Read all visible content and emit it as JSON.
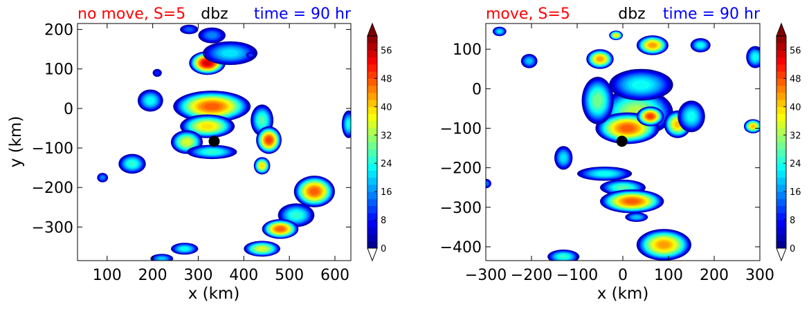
{
  "chart_data": [
    {
      "type": "heatmap",
      "title_left": "no move, S=5",
      "title_center": "dbz",
      "title_right": "time = 90 hr",
      "title_colors": {
        "left": "#ff0000",
        "center": "#000000",
        "right": "#0000ff"
      },
      "xlabel": "x (km)",
      "ylabel": "y (km)",
      "xlim": [
        35,
        635
      ],
      "ylim": [
        -385,
        215
      ],
      "xticks": [
        100,
        200,
        300,
        400,
        500,
        600
      ],
      "yticks": [
        200,
        100,
        0,
        -100,
        -200,
        -300
      ],
      "center_marker": {
        "x": 335,
        "y": -83
      },
      "blobs": [
        {
          "x": 330,
          "y": 5,
          "rx": 85,
          "ry": 40,
          "peak": 46
        },
        {
          "x": 320,
          "y": -45,
          "rx": 60,
          "ry": 30,
          "peak": 38
        },
        {
          "x": 275,
          "y": -85,
          "rx": 35,
          "ry": 30,
          "peak": 34
        },
        {
          "x": 330,
          "y": -110,
          "rx": 55,
          "ry": 18,
          "peak": 24
        },
        {
          "x": 440,
          "y": -30,
          "rx": 25,
          "ry": 40,
          "peak": 26
        },
        {
          "x": 455,
          "y": -80,
          "rx": 28,
          "ry": 35,
          "peak": 48
        },
        {
          "x": 440,
          "y": -145,
          "rx": 18,
          "ry": 22,
          "peak": 38
        },
        {
          "x": 320,
          "y": 115,
          "rx": 40,
          "ry": 30,
          "peak": 54
        },
        {
          "x": 370,
          "y": 140,
          "rx": 60,
          "ry": 30,
          "peak": 20
        },
        {
          "x": 330,
          "y": 185,
          "rx": 30,
          "ry": 20,
          "peak": 14
        },
        {
          "x": 415,
          "y": 135,
          "rx": 10,
          "ry": 8,
          "peak": 10
        },
        {
          "x": 195,
          "y": 20,
          "rx": 28,
          "ry": 28,
          "peak": 22
        },
        {
          "x": 155,
          "y": -140,
          "rx": 30,
          "ry": 25,
          "peak": 24
        },
        {
          "x": 90,
          "y": -175,
          "rx": 12,
          "ry": 12,
          "peak": 14
        },
        {
          "x": 555,
          "y": -210,
          "rx": 45,
          "ry": 40,
          "peak": 46
        },
        {
          "x": 515,
          "y": -270,
          "rx": 40,
          "ry": 30,
          "peak": 24
        },
        {
          "x": 480,
          "y": -305,
          "rx": 40,
          "ry": 25,
          "peak": 46
        },
        {
          "x": 440,
          "y": -355,
          "rx": 40,
          "ry": 20,
          "peak": 34
        },
        {
          "x": 270,
          "y": -355,
          "rx": 30,
          "ry": 15,
          "peak": 22
        },
        {
          "x": 220,
          "y": -380,
          "rx": 25,
          "ry": 12,
          "peak": 18
        },
        {
          "x": 630,
          "y": -40,
          "rx": 15,
          "ry": 35,
          "peak": 22
        },
        {
          "x": 280,
          "y": 200,
          "rx": 20,
          "ry": 12,
          "peak": 12
        },
        {
          "x": 210,
          "y": 90,
          "rx": 10,
          "ry": 10,
          "peak": 8
        }
      ]
    },
    {
      "type": "heatmap",
      "title_left": "move, S=5",
      "title_center": "dbz",
      "title_right": "time = 90 hr",
      "title_colors": {
        "left": "#ff0000",
        "center": "#000000",
        "right": "#0000ff"
      },
      "xlabel": "x (km)",
      "ylabel": "",
      "xlim": [
        -300,
        300
      ],
      "ylim": [
        -435,
        165
      ],
      "xticks": [
        -300,
        -200,
        -100,
        0,
        100,
        200,
        300
      ],
      "yticks": [
        100,
        0,
        -100,
        -200,
        -300,
        -400
      ],
      "center_marker": {
        "x": -2,
        "y": -133
      },
      "blobs": [
        {
          "x": 30,
          "y": -60,
          "rx": 80,
          "ry": 60,
          "peak": 32
        },
        {
          "x": 10,
          "y": -100,
          "rx": 70,
          "ry": 40,
          "peak": 46
        },
        {
          "x": 60,
          "y": -70,
          "rx": 30,
          "ry": 25,
          "peak": 48
        },
        {
          "x": 40,
          "y": 10,
          "rx": 70,
          "ry": 40,
          "peak": 22
        },
        {
          "x": 120,
          "y": -90,
          "rx": 30,
          "ry": 35,
          "peak": 40
        },
        {
          "x": 150,
          "y": -70,
          "rx": 30,
          "ry": 40,
          "peak": 22
        },
        {
          "x": -55,
          "y": -30,
          "rx": 35,
          "ry": 60,
          "peak": 28
        },
        {
          "x": -50,
          "y": 75,
          "rx": 30,
          "ry": 25,
          "peak": 42
        },
        {
          "x": 65,
          "y": 110,
          "rx": 35,
          "ry": 25,
          "peak": 42
        },
        {
          "x": -15,
          "y": 135,
          "rx": 15,
          "ry": 12,
          "peak": 38
        },
        {
          "x": 170,
          "y": 110,
          "rx": 22,
          "ry": 18,
          "peak": 22
        },
        {
          "x": -270,
          "y": 145,
          "rx": 15,
          "ry": 12,
          "peak": 20
        },
        {
          "x": -205,
          "y": 70,
          "rx": 18,
          "ry": 18,
          "peak": 18
        },
        {
          "x": 290,
          "y": 80,
          "rx": 20,
          "ry": 28,
          "peak": 22
        },
        {
          "x": 285,
          "y": -95,
          "rx": 20,
          "ry": 18,
          "peak": 40
        },
        {
          "x": -130,
          "y": -175,
          "rx": 20,
          "ry": 30,
          "peak": 20
        },
        {
          "x": -40,
          "y": -215,
          "rx": 60,
          "ry": 18,
          "peak": 22
        },
        {
          "x": 0,
          "y": -250,
          "rx": 50,
          "ry": 20,
          "peak": 26
        },
        {
          "x": 20,
          "y": -285,
          "rx": 70,
          "ry": 30,
          "peak": 46
        },
        {
          "x": 30,
          "y": -325,
          "rx": 25,
          "ry": 12,
          "peak": 18
        },
        {
          "x": 90,
          "y": -395,
          "rx": 60,
          "ry": 40,
          "peak": 42
        },
        {
          "x": -130,
          "y": -425,
          "rx": 35,
          "ry": 18,
          "peak": 24
        },
        {
          "x": -300,
          "y": -240,
          "rx": 12,
          "ry": 12,
          "peak": 14
        }
      ]
    }
  ],
  "colorbar": {
    "min": 0,
    "max": 60,
    "step": 2,
    "tick_labels": [
      "0",
      "8",
      "16",
      "24",
      "32",
      "40",
      "48",
      "56"
    ],
    "extend": "both"
  }
}
